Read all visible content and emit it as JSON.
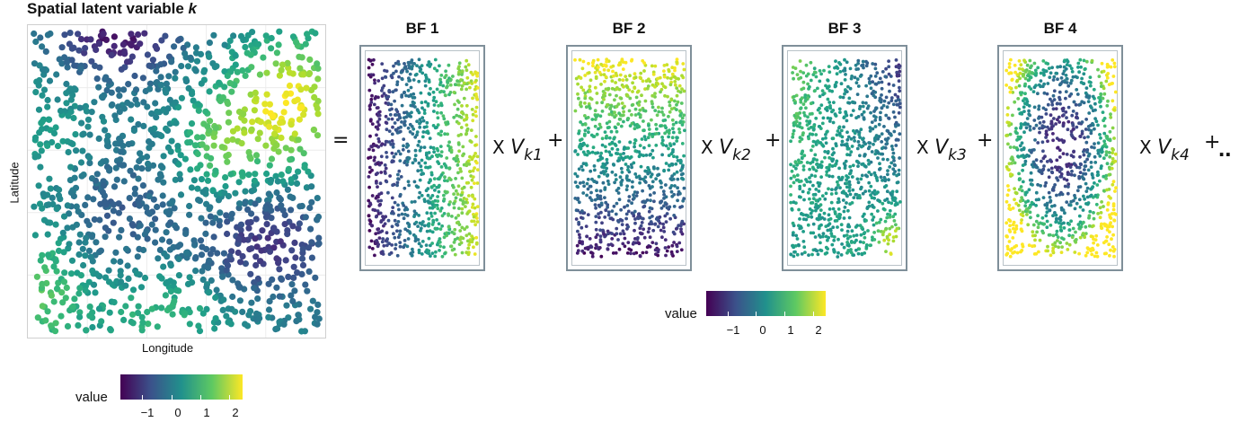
{
  "main": {
    "title_prefix": "Spatial latent variable ",
    "title_var": "k",
    "ylabel": "Latitude",
    "xlabel": "Longitude"
  },
  "basis_functions": [
    {
      "title": "BF 1",
      "multiplier_var": "V",
      "multiplier_sub": "k1",
      "pattern": "left-to-right gradient"
    },
    {
      "title": "BF 2",
      "multiplier_var": "V",
      "multiplier_sub": "k2",
      "pattern": "top-to-bottom gradient"
    },
    {
      "title": "BF 3",
      "multiplier_var": "V",
      "multiplier_sub": "k3",
      "pattern": "diagonal gradient"
    },
    {
      "title": "BF 4",
      "multiplier_var": "V",
      "multiplier_sub": "k4",
      "pattern": "radial low center"
    }
  ],
  "operators": {
    "equals": "=",
    "plus": "+",
    "times": "X",
    "ellipsis": ".."
  },
  "legends": [
    {
      "title": "value",
      "ticks": [
        "−1",
        "0",
        "1",
        "2"
      ]
    },
    {
      "title": "value",
      "ticks": [
        "−1",
        "0",
        "1",
        "2"
      ]
    }
  ],
  "colors": {
    "palette": "viridis",
    "low": "#440154",
    "high": "#fde725",
    "frame": "#7f8f99"
  }
}
